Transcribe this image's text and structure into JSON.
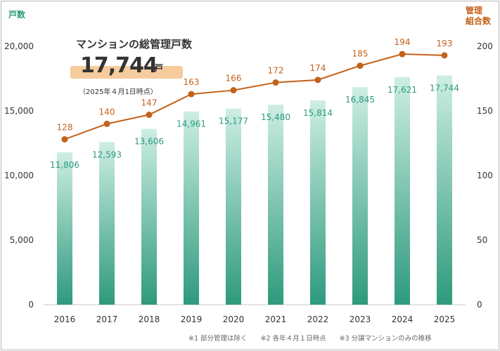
{
  "headline": {
    "title": "マンションの総管理戸数",
    "total_value": "17,744",
    "total_unit": "戸",
    "as_of": "（2025年４月1日時点）"
  },
  "left_axis_title": "戸数",
  "right_axis_title_line1": "管理",
  "right_axis_title_line2": "組合数",
  "notes": [
    "※1 部分管理は除く",
    "※2 各年４月１日時点",
    "※3 分譲マンションのみの推移"
  ],
  "colors": {
    "bar_top": "#cdeee4",
    "bar_bottom": "#2e9a7c",
    "bar_label": "#2e9a7c",
    "line": "#c4611a",
    "axis_left": "#2e9a7c",
    "axis_right": "#c4611a"
  },
  "chart_data": {
    "type": "bar",
    "categories": [
      "2016",
      "2017",
      "2018",
      "2019",
      "2020",
      "2021",
      "2022",
      "2023",
      "2024",
      "2025"
    ],
    "series": [
      {
        "values": [
          11806,
          12593,
          13606,
          14961,
          15177,
          15480,
          15814,
          16845,
          17621,
          17744
        ],
        "labels": [
          "11,806",
          "12,593",
          "13,606",
          "14,961",
          "15,177",
          "15,480",
          "15,814",
          "16,845",
          "17,621",
          "17,744"
        ],
        "axis": "left",
        "type": "bar"
      },
      {
        "values": [
          128,
          140,
          147,
          163,
          166,
          172,
          174,
          185,
          194,
          193
        ],
        "axis": "right",
        "type": "line"
      }
    ],
    "ylim_left": [
      0,
      20000
    ],
    "ylim_right": [
      0,
      200
    ],
    "yticks_left": [
      "0",
      "5,000",
      "10,000",
      "15,000",
      "20,000"
    ],
    "yticks_right": [
      "0",
      "50",
      "100",
      "150",
      "200"
    ],
    "grid": false,
    "legend": "none"
  }
}
